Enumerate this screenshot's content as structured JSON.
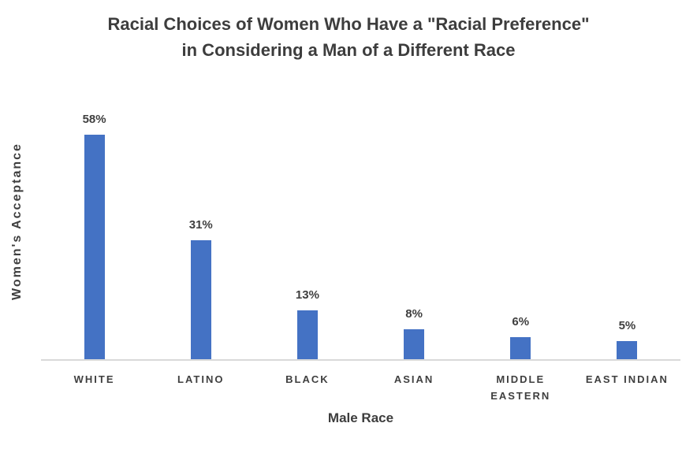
{
  "chart_data": {
    "type": "bar",
    "title_line1": "Racial Choices of Women Who Have a \"Racial Preference\"",
    "title_line2": "in Considering a Man of a Different Race",
    "xlabel": "Male Race",
    "ylabel": "Women's Acceptance",
    "categories": [
      "WHITE",
      "LATINO",
      "BLACK",
      "ASIAN",
      "MIDDLE EASTERN",
      "EAST INDIAN"
    ],
    "values": [
      58,
      31,
      13,
      8,
      6,
      5
    ],
    "value_labels": [
      "58%",
      "31%",
      "13%",
      "8%",
      "6%",
      "5%"
    ],
    "ylim": [
      0,
      60
    ],
    "grid": false,
    "legend": false,
    "y_tick_labels_visible": false,
    "bar_color": "#4472C4",
    "axis_line_color": "#D9D9D9",
    "text_color": "#3F3F3F"
  }
}
